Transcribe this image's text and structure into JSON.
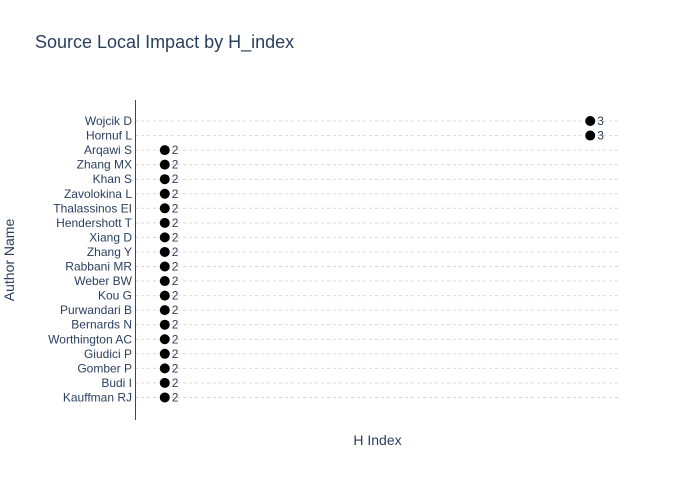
{
  "chart_data": {
    "type": "scatter",
    "title": "Source Local Impact by H_index",
    "xlabel": "H Index",
    "ylabel": "Author Name",
    "grid": true,
    "categories": [
      "Wojcik D",
      "Hornuf L",
      "Arqawi S",
      "Zhang MX",
      "Khan S",
      "Zavolokina L",
      "Thalassinos EI",
      "Hendershott T",
      "Xiang D",
      "Zhang Y",
      "Rabbani MR",
      "Weber BW",
      "Kou G",
      "Purwandari B",
      "Bernards N",
      "Worthington AC",
      "Giudici P",
      "Gomber P",
      "Budi I",
      "Kauffman RJ"
    ],
    "values": [
      3,
      3,
      2,
      2,
      2,
      2,
      2,
      2,
      2,
      2,
      2,
      2,
      2,
      2,
      2,
      2,
      2,
      2,
      2,
      2
    ],
    "xlim": [
      1.93,
      3.07
    ],
    "marker_color": "#000000",
    "grid_color": "#d9d9d9"
  }
}
